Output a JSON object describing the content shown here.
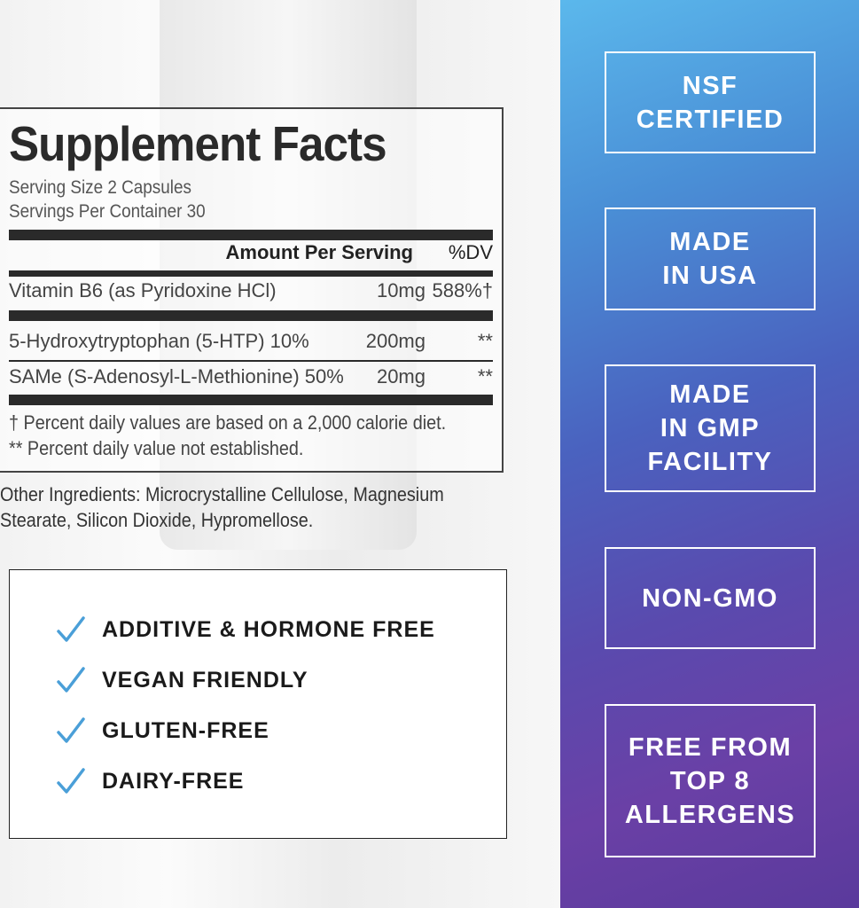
{
  "facts": {
    "title": "Supplement Facts",
    "serving_size": "Serving Size 2 Capsules",
    "servings_per_container": "Servings Per Container 30",
    "header_amount": "Amount Per Serving",
    "header_dv": "%DV",
    "rows": [
      {
        "name": "Vitamin B6 (as Pyridoxine HCl)",
        "amount": "10mg",
        "dv": "588%†"
      },
      {
        "name": "5-Hydroxytryptophan (5-HTP) 10%",
        "amount": "200mg",
        "dv": "**"
      },
      {
        "name": "SAMe (S-Adenosyl-L-Methionine) 50%",
        "amount": "20mg",
        "dv": "**"
      }
    ],
    "footnote1": "† Percent daily values are based on a 2,000 calorie diet.",
    "footnote2": "** Percent daily value not established.",
    "other_ingredients": "Other Ingredients: Microcrystalline Cellulose, Magnesium Stearate, Silicon Dioxide, Hypromellose."
  },
  "checklist": {
    "icon": "checkmark-icon",
    "check_color": "#4a9fd8",
    "items": [
      "ADDITIVE & HORMONE FREE",
      "VEGAN FRIENDLY",
      "GLUTEN-FREE",
      "DAIRY-FREE"
    ]
  },
  "badges": [
    "NSF\nCERTIFIED",
    "MADE\nIN USA",
    "MADE\nIN GMP\nFACILITY",
    "NON-GMO",
    "FREE FROM\nTOP 8\nALLERGENS"
  ],
  "colors": {
    "panel_top": "#5bb8ec",
    "panel_bottom": "#5a3a9c"
  }
}
